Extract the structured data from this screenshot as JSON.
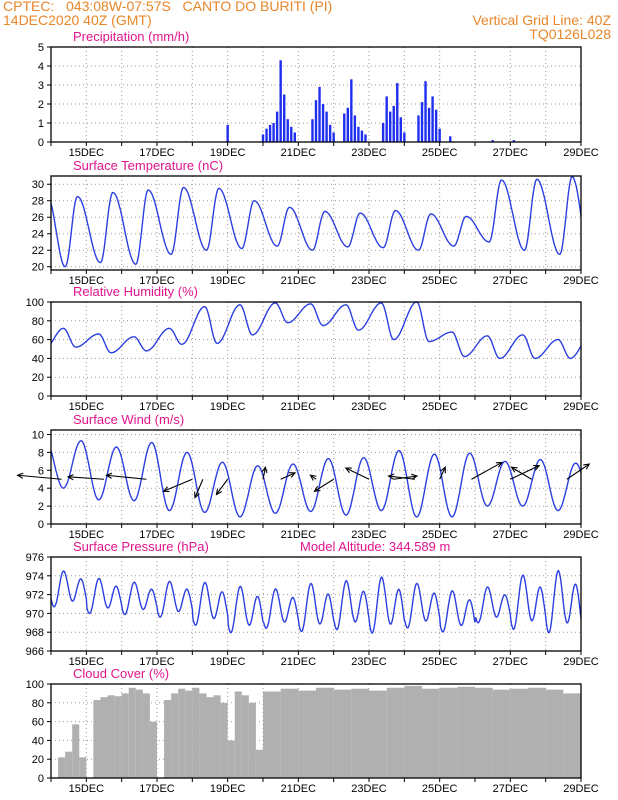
{
  "header": {
    "line1_left": "CPTEC:   043:08W-07:57S   CANTO DO BURITI (PI)",
    "line2_left": "14DEC2020 40Z (GMT)",
    "line2_right": "Vertical Grid Line: 40Z",
    "line3_right": "TQ0126L028"
  },
  "colors": {
    "header": "#e8862a",
    "panel_title": "#e0158c",
    "series_line": "#2b3fe0",
    "precip_bar": "#1f2fef",
    "cloud_bar": "#b0b0b0",
    "wind_arrow": "#000000",
    "grid": "#9a9a9a"
  },
  "chart_data": [
    {
      "type": "bar",
      "title": "Precipitation (mm/h)",
      "ylim": [
        0,
        5
      ],
      "yticks": [
        "0",
        "1",
        "2",
        "3",
        "4",
        "5"
      ],
      "xticks": [
        "15DEC",
        "17DEC",
        "19DEC",
        "21DEC",
        "23DEC",
        "25DEC",
        "27DEC",
        "29DEC"
      ],
      "grid": true,
      "x": [
        20.0,
        20.1,
        20.2,
        20.3,
        20.4,
        20.5,
        20.6,
        20.7,
        20.8,
        20.9,
        21.4,
        21.5,
        21.6,
        21.7,
        21.8,
        21.9,
        22.0,
        22.3,
        22.4,
        22.5,
        22.6,
        22.7,
        22.8,
        22.9,
        23.4,
        23.5,
        23.6,
        23.7,
        23.8,
        23.9,
        24.0,
        24.4,
        24.5,
        24.6,
        24.7,
        24.8,
        24.9,
        25.0,
        19.0,
        25.3,
        26.5,
        27.1
      ],
      "values": [
        0.4,
        0.7,
        0.9,
        1.0,
        1.6,
        4.3,
        2.5,
        1.2,
        0.8,
        0.5,
        1.2,
        2.2,
        2.9,
        2.0,
        1.6,
        0.9,
        0.5,
        1.5,
        1.8,
        3.3,
        1.4,
        0.8,
        0.6,
        0.4,
        1.0,
        2.4,
        1.6,
        1.9,
        3.1,
        1.3,
        0.5,
        1.4,
        2.1,
        3.2,
        1.8,
        2.4,
        1.7,
        0.7,
        0.9,
        0.3,
        0.1,
        0.1
      ]
    },
    {
      "type": "line",
      "title": "Surface Temperature (nC)",
      "ylim": [
        19.6,
        31.0
      ],
      "yticks": [
        "20",
        "22",
        "24",
        "26",
        "28",
        "30"
      ],
      "xticks": [
        "15DEC",
        "17DEC",
        "19DEC",
        "21DEC",
        "23DEC",
        "25DEC",
        "27DEC",
        "29DEC"
      ],
      "grid": true,
      "min": [
        20.0,
        20.5,
        20.3,
        21.5,
        22.0,
        22.2,
        22.5,
        22.0,
        22.4,
        22.3,
        22.0,
        22.5,
        23.0,
        22.0,
        21.5
      ],
      "max": [
        28.5,
        29.0,
        29.3,
        29.6,
        29.5,
        28.0,
        27.2,
        26.7,
        26.5,
        26.8,
        26.4,
        26.1,
        30.5,
        30.6,
        30.9
      ]
    },
    {
      "type": "line",
      "title": "Relative Humidity (%)",
      "ylim": [
        0,
        100
      ],
      "yticks": [
        "0",
        "20",
        "40",
        "60",
        "80",
        "100"
      ],
      "xticks": [
        "15DEC",
        "17DEC",
        "19DEC",
        "21DEC",
        "23DEC",
        "25DEC",
        "27DEC",
        "29DEC"
      ],
      "grid": true,
      "min": [
        52,
        46,
        48,
        55,
        56,
        65,
        78,
        75,
        70,
        60,
        58,
        42,
        40,
        40,
        40
      ],
      "max": [
        72,
        66,
        63,
        72,
        95,
        97,
        99,
        98,
        97,
        99,
        100,
        68,
        64,
        65,
        60
      ]
    },
    {
      "type": "line",
      "title": "Surface Wind (m/s)",
      "ylim": [
        0,
        10.5
      ],
      "yticks": [
        "0",
        "2",
        "4",
        "6",
        "8",
        "10"
      ],
      "xticks": [
        "15DEC",
        "17DEC",
        "19DEC",
        "21DEC",
        "23DEC",
        "25DEC",
        "27DEC",
        "29DEC"
      ],
      "grid": true,
      "min": [
        4.0,
        2.7,
        2.6,
        1.5,
        1.3,
        0.8,
        1.2,
        1.4,
        1.0,
        1.5,
        0.8,
        0.8,
        2.0,
        2.0,
        1.5
      ],
      "max": [
        9.3,
        8.6,
        9.1,
        8.0,
        6.9,
        6.5,
        6.7,
        7.3,
        7.4,
        8.2,
        7.8,
        7.9,
        7.0,
        7.2,
        6.8
      ],
      "arrows_x": [
        14.3,
        15.5,
        16.7,
        18.0,
        18.3,
        19.0,
        20.0,
        20.5,
        21.5,
        22.0,
        23.0,
        23.7,
        24.3,
        25.0,
        25.9,
        27.0,
        27.6,
        28.6
      ],
      "arrows_u": [
        -5.5,
        -4.5,
        -5.0,
        -3.6,
        -1.0,
        -1.4,
        0.3,
        1.8,
        -0.7,
        -2.4,
        -2.9,
        2.9,
        -3.3,
        0.7,
        3.8,
        3.6,
        -2.5,
        2.8
      ],
      "arrows_v": [
        0.5,
        0.3,
        0.5,
        -1.5,
        -2.3,
        -1.9,
        1.5,
        0.8,
        0.5,
        -1.5,
        1.4,
        0.4,
        0.4,
        1.5,
        2.1,
        1.7,
        1.5,
        1.9
      ]
    },
    {
      "type": "line",
      "title": "Surface Pressure (hPa)",
      "annotation": "Model Altitude: 344.589 m",
      "ylim": [
        966,
        976
      ],
      "yticks": [
        "966",
        "968",
        "970",
        "972",
        "974",
        "976"
      ],
      "xticks": [
        "15DEC",
        "17DEC",
        "19DEC",
        "21DEC",
        "23DEC",
        "25DEC",
        "27DEC",
        "29DEC"
      ],
      "grid": true,
      "min": [
        970.5,
        969.8,
        969.7,
        969.4,
        968.5,
        967.7,
        968.2,
        967.8,
        968.0,
        967.6,
        968.2,
        967.8,
        968.8,
        968.0,
        967.6
      ],
      "max": [
        974.6,
        973.8,
        973.4,
        973.5,
        973.4,
        973.0,
        972.7,
        973.3,
        973.6,
        974.0,
        973.3,
        972.5,
        972.9,
        974.2,
        974.7
      ]
    },
    {
      "type": "bar",
      "title": "Cloud Cover (%)",
      "ylim": [
        0,
        100
      ],
      "yticks": [
        "0",
        "20",
        "40",
        "60",
        "80",
        "100"
      ],
      "xticks": [
        "15DEC",
        "17DEC",
        "19DEC",
        "21DEC",
        "23DEC",
        "25DEC",
        "27DEC",
        "29DEC"
      ],
      "grid": true,
      "x": [
        14.0,
        14.2,
        14.4,
        14.6,
        14.8,
        15.0,
        15.2,
        15.4,
        15.6,
        15.8,
        16.0,
        16.2,
        16.4,
        16.6,
        16.8,
        17.0,
        17.2,
        17.4,
        17.6,
        17.8,
        18.0,
        18.2,
        18.4,
        18.6,
        18.8,
        19.0,
        19.2,
        19.4,
        19.6,
        19.8,
        20.0,
        20.5,
        21.0,
        21.5,
        22.0,
        22.5,
        23.0,
        23.5,
        24.0,
        24.5,
        25.0,
        25.5,
        26.0,
        26.5,
        27.0,
        27.5,
        28.0,
        28.5,
        29.0
      ],
      "values": [
        0,
        22,
        28,
        57,
        22,
        0,
        83,
        86,
        88,
        87,
        90,
        96,
        94,
        90,
        60,
        0,
        83,
        90,
        95,
        93,
        96,
        90,
        86,
        88,
        80,
        40,
        92,
        88,
        80,
        30,
        92,
        95,
        93,
        96,
        94,
        95,
        93,
        96,
        98,
        95,
        96,
        97,
        96,
        94,
        95,
        96,
        94,
        90,
        82
      ]
    }
  ]
}
